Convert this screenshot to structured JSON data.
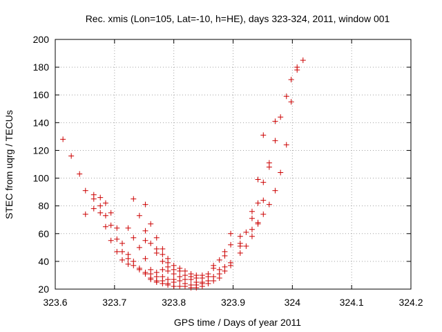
{
  "chart_data": {
    "type": "scatter",
    "title": "Rec. xmis (Lon=105, Lat=-10, h=HE), days 323-324, 2011, window 001",
    "xlabel": "GPS time / Days of year 2011",
    "ylabel": "STEC from uqrg / TECUs",
    "xlim": [
      323.6,
      324.2
    ],
    "ylim": [
      20,
      200
    ],
    "xticks": [
      323.6,
      323.7,
      323.8,
      323.9,
      324,
      324.1,
      324.2
    ],
    "xtick_labels": [
      "323.6",
      "323.7",
      "323.8",
      "323.9",
      "324",
      "324.1",
      "324.2"
    ],
    "yticks": [
      20,
      40,
      60,
      80,
      100,
      120,
      140,
      160,
      180,
      200
    ],
    "ytick_labels": [
      "20",
      "40",
      "60",
      "80",
      "100",
      "120",
      "140",
      "160",
      "180",
      "200"
    ],
    "grid": true,
    "marker": "+",
    "color": "#cc0000",
    "points": [
      [
        323.613,
        128
      ],
      [
        323.627,
        116
      ],
      [
        323.641,
        103
      ],
      [
        323.651,
        91
      ],
      [
        323.651,
        74
      ],
      [
        323.665,
        88
      ],
      [
        323.665,
        85
      ],
      [
        323.665,
        78
      ],
      [
        323.676,
        86
      ],
      [
        323.676,
        80
      ],
      [
        323.676,
        75
      ],
      [
        323.685,
        82
      ],
      [
        323.685,
        73
      ],
      [
        323.685,
        65
      ],
      [
        323.694,
        75
      ],
      [
        323.694,
        66
      ],
      [
        323.694,
        55
      ],
      [
        323.704,
        64
      ],
      [
        323.704,
        56
      ],
      [
        323.704,
        47
      ],
      [
        323.713,
        53
      ],
      [
        323.713,
        47
      ],
      [
        323.713,
        41
      ],
      [
        323.723,
        64
      ],
      [
        323.723,
        45
      ],
      [
        323.723,
        42
      ],
      [
        323.723,
        38
      ],
      [
        323.732,
        85
      ],
      [
        323.732,
        57
      ],
      [
        323.732,
        40
      ],
      [
        323.732,
        37
      ],
      [
        323.742,
        73
      ],
      [
        323.742,
        50
      ],
      [
        323.742,
        35
      ],
      [
        323.742,
        34
      ],
      [
        323.752,
        81
      ],
      [
        323.752,
        62
      ],
      [
        323.752,
        55
      ],
      [
        323.752,
        42
      ],
      [
        323.752,
        32
      ],
      [
        323.752,
        31
      ],
      [
        323.761,
        67
      ],
      [
        323.761,
        53
      ],
      [
        323.761,
        34
      ],
      [
        323.761,
        31
      ],
      [
        323.761,
        28
      ],
      [
        323.761,
        27
      ],
      [
        323.771,
        57
      ],
      [
        323.771,
        49
      ],
      [
        323.771,
        46
      ],
      [
        323.771,
        32
      ],
      [
        323.771,
        29
      ],
      [
        323.771,
        26
      ],
      [
        323.771,
        25
      ],
      [
        323.781,
        49
      ],
      [
        323.781,
        45
      ],
      [
        323.781,
        40
      ],
      [
        323.781,
        34
      ],
      [
        323.781,
        29
      ],
      [
        323.781,
        26
      ],
      [
        323.781,
        24
      ],
      [
        323.79,
        42
      ],
      [
        323.79,
        39
      ],
      [
        323.79,
        36
      ],
      [
        323.79,
        33
      ],
      [
        323.79,
        27
      ],
      [
        323.79,
        24
      ],
      [
        323.79,
        23
      ],
      [
        323.8,
        37
      ],
      [
        323.8,
        34
      ],
      [
        323.8,
        31
      ],
      [
        323.8,
        27
      ],
      [
        323.8,
        25
      ],
      [
        323.8,
        22
      ],
      [
        323.81,
        35
      ],
      [
        323.81,
        33
      ],
      [
        323.81,
        29
      ],
      [
        323.81,
        26
      ],
      [
        323.81,
        22
      ],
      [
        323.819,
        33
      ],
      [
        323.819,
        30
      ],
      [
        323.819,
        27
      ],
      [
        323.819,
        24
      ],
      [
        323.819,
        22
      ],
      [
        323.829,
        31
      ],
      [
        323.829,
        29
      ],
      [
        323.829,
        27
      ],
      [
        323.829,
        23
      ],
      [
        323.829,
        21
      ],
      [
        323.838,
        30
      ],
      [
        323.838,
        28
      ],
      [
        323.838,
        25
      ],
      [
        323.838,
        23
      ],
      [
        323.838,
        21
      ],
      [
        323.848,
        30
      ],
      [
        323.848,
        28
      ],
      [
        323.848,
        25
      ],
      [
        323.848,
        24
      ],
      [
        323.848,
        22
      ],
      [
        323.858,
        31
      ],
      [
        323.858,
        29
      ],
      [
        323.858,
        26
      ],
      [
        323.858,
        24
      ],
      [
        323.867,
        37
      ],
      [
        323.867,
        35
      ],
      [
        323.867,
        29
      ],
      [
        323.867,
        26
      ],
      [
        323.877,
        41
      ],
      [
        323.877,
        34
      ],
      [
        323.877,
        31
      ],
      [
        323.877,
        28
      ],
      [
        323.886,
        47
      ],
      [
        323.886,
        44
      ],
      [
        323.886,
        36
      ],
      [
        323.886,
        33
      ],
      [
        323.896,
        60
      ],
      [
        323.896,
        52
      ],
      [
        323.896,
        39
      ],
      [
        323.896,
        37
      ],
      [
        323.912,
        58
      ],
      [
        323.912,
        53
      ],
      [
        323.912,
        51
      ],
      [
        323.912,
        46
      ],
      [
        323.922,
        61
      ],
      [
        323.922,
        51
      ],
      [
        323.932,
        76
      ],
      [
        323.932,
        71
      ],
      [
        323.932,
        63
      ],
      [
        323.932,
        58
      ],
      [
        323.942,
        99
      ],
      [
        323.942,
        82
      ],
      [
        323.942,
        68
      ],
      [
        323.942,
        67
      ],
      [
        323.951,
        131
      ],
      [
        323.951,
        97
      ],
      [
        323.951,
        84
      ],
      [
        323.951,
        74
      ],
      [
        323.961,
        111
      ],
      [
        323.961,
        108
      ],
      [
        323.961,
        81
      ],
      [
        323.971,
        141
      ],
      [
        323.971,
        127
      ],
      [
        323.971,
        91
      ],
      [
        323.98,
        144
      ],
      [
        323.98,
        104
      ],
      [
        323.99,
        159
      ],
      [
        323.99,
        124
      ],
      [
        323.998,
        171
      ],
      [
        323.998,
        155
      ],
      [
        324.008,
        180
      ],
      [
        324.008,
        178
      ],
      [
        324.018,
        185
      ]
    ]
  }
}
